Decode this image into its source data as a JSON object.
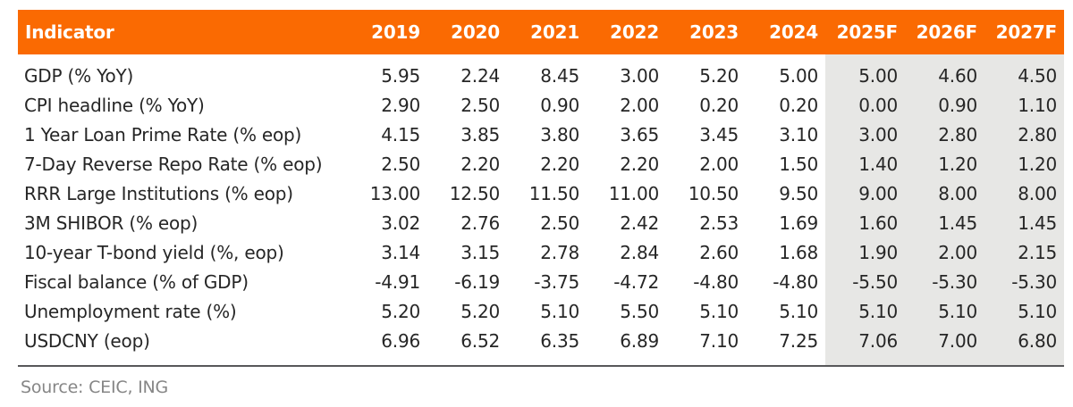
{
  "chart_data": {
    "type": "table",
    "columns": [
      "Indicator",
      "2019",
      "2020",
      "2021",
      "2022",
      "2023",
      "2024",
      "2025F",
      "2026F",
      "2027F"
    ],
    "forecast_columns": [
      "2025F",
      "2026F",
      "2027F"
    ],
    "rows": [
      {
        "indicator": "GDP (% YoY)",
        "values": [
          "5.95",
          "2.24",
          "8.45",
          "3.00",
          "5.20",
          "5.00",
          "5.00",
          "4.60",
          "4.50"
        ]
      },
      {
        "indicator": "CPI headline (% YoY)",
        "values": [
          "2.90",
          "2.50",
          "0.90",
          "2.00",
          "0.20",
          "0.20",
          "0.00",
          "0.90",
          "1.10"
        ]
      },
      {
        "indicator": "1 Year Loan Prime Rate (% eop)",
        "values": [
          "4.15",
          "3.85",
          "3.80",
          "3.65",
          "3.45",
          "3.10",
          "3.00",
          "2.80",
          "2.80"
        ]
      },
      {
        "indicator": "7-Day Reverse Repo Rate (% eop)",
        "values": [
          "2.50",
          "2.20",
          "2.20",
          "2.20",
          "2.00",
          "1.50",
          "1.40",
          "1.20",
          "1.20"
        ]
      },
      {
        "indicator": "RRR Large Institutions (% eop)",
        "values": [
          "13.00",
          "12.50",
          "11.50",
          "11.00",
          "10.50",
          "9.50",
          "9.00",
          "8.00",
          "8.00"
        ]
      },
      {
        "indicator": "3M SHIBOR (% eop)",
        "values": [
          "3.02",
          "2.76",
          "2.50",
          "2.42",
          "2.53",
          "1.69",
          "1.60",
          "1.45",
          "1.45"
        ]
      },
      {
        "indicator": "10-year T-bond yield (%, eop)",
        "values": [
          "3.14",
          "3.15",
          "2.78",
          "2.84",
          "2.60",
          "1.68",
          "1.90",
          "2.00",
          "2.15"
        ]
      },
      {
        "indicator": "Fiscal balance (% of GDP)",
        "values": [
          "-4.91",
          "-6.19",
          "-3.75",
          "-4.72",
          "-4.80",
          "-4.80",
          "-5.50",
          "-5.30",
          "-5.30"
        ]
      },
      {
        "indicator": "Unemployment rate (%)",
        "values": [
          "5.20",
          "5.20",
          "5.10",
          "5.50",
          "5.10",
          "5.10",
          "5.10",
          "5.10",
          "5.10"
        ]
      },
      {
        "indicator": "USDCNY (eop)",
        "values": [
          "6.96",
          "6.52",
          "6.35",
          "6.89",
          "7.10",
          "7.25",
          "7.06",
          "7.00",
          "6.80"
        ]
      }
    ],
    "source": "Source: CEIC, ING",
    "layout": {
      "indicator_col_width": 369,
      "value_col_width": 89,
      "forecast_start_index": 6
    }
  },
  "colors": {
    "header_bg": "#FA6A02",
    "header_text": "#FFFFFF",
    "forecast_bg": "#E7E7E5",
    "body_text": "#262626",
    "source_text": "#868686",
    "divider": "#58585A"
  }
}
